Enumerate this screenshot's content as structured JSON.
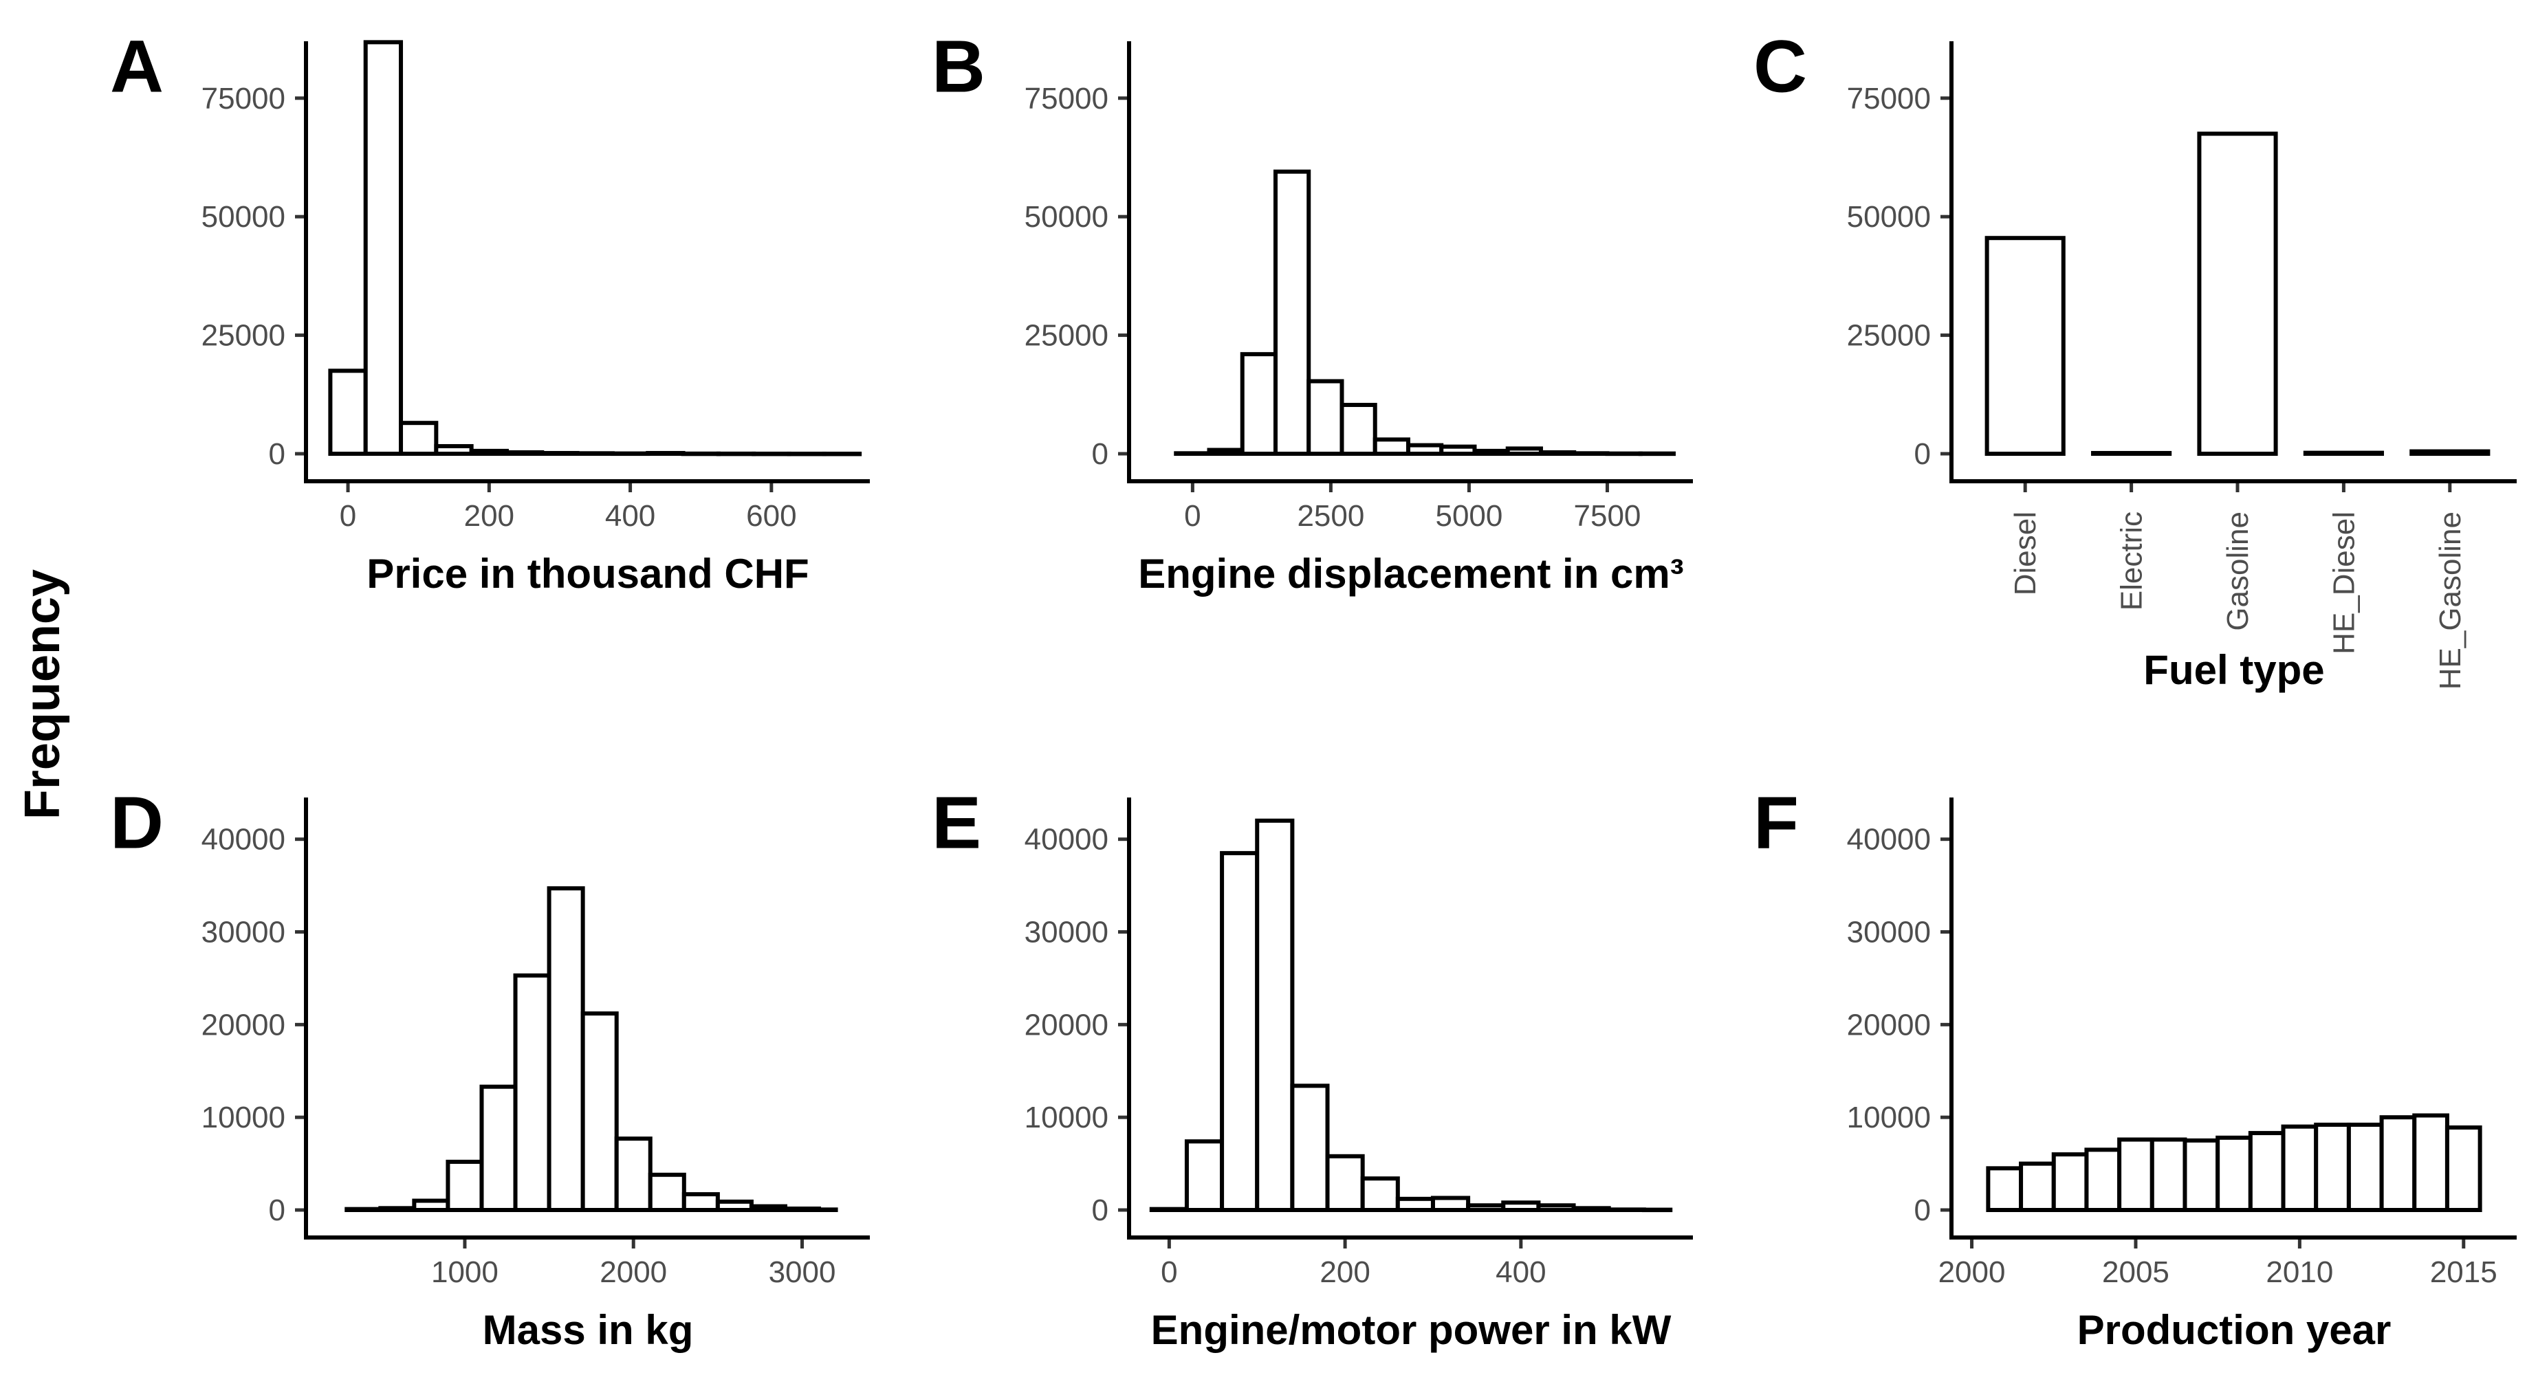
{
  "ylabel": "Frequency",
  "chart_data": [
    {
      "panel": "A",
      "type": "bar",
      "title": "",
      "xlabel": "Price in thousand CHF",
      "ylabel": "Frequency",
      "ylim": [
        0,
        87000
      ],
      "xlim": [
        -40,
        720
      ],
      "xticks": [
        0,
        200,
        400,
        600
      ],
      "xtick_labels": [
        "0",
        "200",
        "400",
        "600"
      ],
      "yticks": [
        0,
        25000,
        50000,
        75000
      ],
      "ytick_labels": [
        "0",
        "25000",
        "50000",
        "75000"
      ],
      "bins": [
        {
          "x0": -25,
          "x1": 25,
          "value": 17500
        },
        {
          "x0": 25,
          "x1": 75,
          "value": 86800
        },
        {
          "x0": 75,
          "x1": 125,
          "value": 6500
        },
        {
          "x0": 125,
          "x1": 175,
          "value": 1600
        },
        {
          "x0": 175,
          "x1": 225,
          "value": 600
        },
        {
          "x0": 225,
          "x1": 275,
          "value": 300
        },
        {
          "x0": 275,
          "x1": 325,
          "value": 150
        },
        {
          "x0": 325,
          "x1": 375,
          "value": 100
        },
        {
          "x0": 375,
          "x1": 425,
          "value": 60
        },
        {
          "x0": 425,
          "x1": 475,
          "value": 150
        },
        {
          "x0": 475,
          "x1": 525,
          "value": 30
        },
        {
          "x0": 525,
          "x1": 575,
          "value": 20
        },
        {
          "x0": 575,
          "x1": 625,
          "value": 10
        },
        {
          "x0": 625,
          "x1": 675,
          "value": 5
        },
        {
          "x0": 675,
          "x1": 725,
          "value": 5
        }
      ]
    },
    {
      "panel": "B",
      "type": "bar",
      "title": "",
      "xlabel": "Engine displacement in cm³",
      "ylabel": "Frequency",
      "ylim": [
        0,
        87000
      ],
      "xlim": [
        -900,
        8800
      ],
      "xticks": [
        0,
        2500,
        5000,
        7500
      ],
      "xtick_labels": [
        "0",
        "2500",
        "5000",
        "7500"
      ],
      "yticks": [
        0,
        25000,
        50000,
        75000
      ],
      "ytick_labels": [
        "0",
        "25000",
        "50000",
        "75000"
      ],
      "bins": [
        {
          "x0": -300,
          "x1": 300,
          "value": 100
        },
        {
          "x0": 300,
          "x1": 900,
          "value": 800
        },
        {
          "x0": 900,
          "x1": 1500,
          "value": 21000
        },
        {
          "x0": 1500,
          "x1": 2100,
          "value": 59500
        },
        {
          "x0": 2100,
          "x1": 2700,
          "value": 15300
        },
        {
          "x0": 2700,
          "x1": 3300,
          "value": 10300
        },
        {
          "x0": 3300,
          "x1": 3900,
          "value": 3000
        },
        {
          "x0": 3900,
          "x1": 4500,
          "value": 1800
        },
        {
          "x0": 4500,
          "x1": 5100,
          "value": 1500
        },
        {
          "x0": 5100,
          "x1": 5700,
          "value": 600
        },
        {
          "x0": 5700,
          "x1": 6300,
          "value": 1100
        },
        {
          "x0": 6300,
          "x1": 6900,
          "value": 300
        },
        {
          "x0": 6900,
          "x1": 7500,
          "value": 100
        },
        {
          "x0": 7500,
          "x1": 8100,
          "value": 50
        },
        {
          "x0": 8100,
          "x1": 8700,
          "value": 50
        }
      ]
    },
    {
      "panel": "C",
      "type": "bar",
      "title": "",
      "xlabel": "Fuel type",
      "ylabel": "Frequency",
      "ylim": [
        0,
        87000
      ],
      "yticks": [
        0,
        25000,
        50000,
        75000
      ],
      "ytick_labels": [
        "0",
        "25000",
        "50000",
        "75000"
      ],
      "categories": [
        "Diesel",
        "Electric",
        "Gasoline",
        "HE_Diesel",
        "HE_Gasoline"
      ],
      "values": [
        45500,
        150,
        67500,
        200,
        500
      ]
    },
    {
      "panel": "D",
      "type": "bar",
      "title": "",
      "xlabel": "Mass in kg",
      "ylabel": "Frequency",
      "ylim": [
        0,
        44500
      ],
      "xlim": [
        140,
        3320
      ],
      "xticks": [
        1000,
        2000,
        3000
      ],
      "xtick_labels": [
        "1000",
        "2000",
        "3000"
      ],
      "yticks": [
        0,
        10000,
        20000,
        30000,
        40000
      ],
      "ytick_labels": [
        "0",
        "10000",
        "20000",
        "30000",
        "40000"
      ],
      "bins": [
        {
          "x0": 300,
          "x1": 500,
          "value": 100
        },
        {
          "x0": 500,
          "x1": 700,
          "value": 200
        },
        {
          "x0": 700,
          "x1": 900,
          "value": 1000
        },
        {
          "x0": 900,
          "x1": 1100,
          "value": 5200
        },
        {
          "x0": 1100,
          "x1": 1300,
          "value": 13300
        },
        {
          "x0": 1300,
          "x1": 1500,
          "value": 25300
        },
        {
          "x0": 1500,
          "x1": 1700,
          "value": 34700
        },
        {
          "x0": 1700,
          "x1": 1900,
          "value": 21200
        },
        {
          "x0": 1900,
          "x1": 2100,
          "value": 7700
        },
        {
          "x0": 2100,
          "x1": 2300,
          "value": 3800
        },
        {
          "x0": 2300,
          "x1": 2500,
          "value": 1700
        },
        {
          "x0": 2500,
          "x1": 2700,
          "value": 900
        },
        {
          "x0": 2700,
          "x1": 2900,
          "value": 400
        },
        {
          "x0": 2900,
          "x1": 3100,
          "value": 150
        },
        {
          "x0": 3100,
          "x1": 3200,
          "value": 50
        }
      ]
    },
    {
      "panel": "E",
      "type": "bar",
      "title": "",
      "xlabel": "Engine/motor power in kW",
      "ylabel": "Frequency",
      "ylim": [
        0,
        44500
      ],
      "xlim": [
        -30,
        580
      ],
      "xticks": [
        0,
        200,
        400
      ],
      "xtick_labels": [
        "0",
        "200",
        "400"
      ],
      "yticks": [
        0,
        10000,
        20000,
        30000,
        40000
      ],
      "ytick_labels": [
        "0",
        "10000",
        "20000",
        "30000",
        "40000"
      ],
      "bins": [
        {
          "x0": -20,
          "x1": 20,
          "value": 100
        },
        {
          "x0": 20,
          "x1": 60,
          "value": 7400
        },
        {
          "x0": 60,
          "x1": 100,
          "value": 38500
        },
        {
          "x0": 100,
          "x1": 140,
          "value": 42000
        },
        {
          "x0": 140,
          "x1": 180,
          "value": 13400
        },
        {
          "x0": 180,
          "x1": 220,
          "value": 5800
        },
        {
          "x0": 220,
          "x1": 260,
          "value": 3400
        },
        {
          "x0": 260,
          "x1": 300,
          "value": 1200
        },
        {
          "x0": 300,
          "x1": 340,
          "value": 1300
        },
        {
          "x0": 340,
          "x1": 380,
          "value": 500
        },
        {
          "x0": 380,
          "x1": 420,
          "value": 800
        },
        {
          "x0": 420,
          "x1": 460,
          "value": 500
        },
        {
          "x0": 460,
          "x1": 500,
          "value": 200
        },
        {
          "x0": 500,
          "x1": 540,
          "value": 50
        },
        {
          "x0": 540,
          "x1": 570,
          "value": 30
        }
      ]
    },
    {
      "panel": "F",
      "type": "bar",
      "title": "",
      "xlabel": "Production year",
      "ylabel": "Frequency",
      "ylim": [
        0,
        44500
      ],
      "xlim": [
        1999.8,
        2016.2
      ],
      "xticks": [
        2000,
        2005,
        2010,
        2015
      ],
      "xtick_labels": [
        "2000",
        "2005",
        "2010",
        "2015"
      ],
      "yticks": [
        0,
        10000,
        20000,
        30000,
        40000
      ],
      "ytick_labels": [
        "0",
        "10000",
        "20000",
        "30000",
        "40000"
      ],
      "bins": [
        {
          "x0": 2000.5,
          "x1": 2001.5,
          "value": 4500
        },
        {
          "x0": 2001.5,
          "x1": 2002.5,
          "value": 5000
        },
        {
          "x0": 2002.5,
          "x1": 2003.5,
          "value": 6000
        },
        {
          "x0": 2003.5,
          "x1": 2004.5,
          "value": 6500
        },
        {
          "x0": 2004.5,
          "x1": 2005.5,
          "value": 7600
        },
        {
          "x0": 2005.5,
          "x1": 2006.5,
          "value": 7600
        },
        {
          "x0": 2006.5,
          "x1": 2007.5,
          "value": 7500
        },
        {
          "x0": 2007.5,
          "x1": 2008.5,
          "value": 7800
        },
        {
          "x0": 2008.5,
          "x1": 2009.5,
          "value": 8300
        },
        {
          "x0": 2009.5,
          "x1": 2010.5,
          "value": 9000
        },
        {
          "x0": 2010.5,
          "x1": 2011.5,
          "value": 9200
        },
        {
          "x0": 2011.5,
          "x1": 2012.5,
          "value": 9200
        },
        {
          "x0": 2012.5,
          "x1": 2013.5,
          "value": 10000
        },
        {
          "x0": 2013.5,
          "x1": 2014.5,
          "value": 10200
        },
        {
          "x0": 2014.5,
          "x1": 2015.5,
          "value": 8900
        }
      ]
    }
  ]
}
